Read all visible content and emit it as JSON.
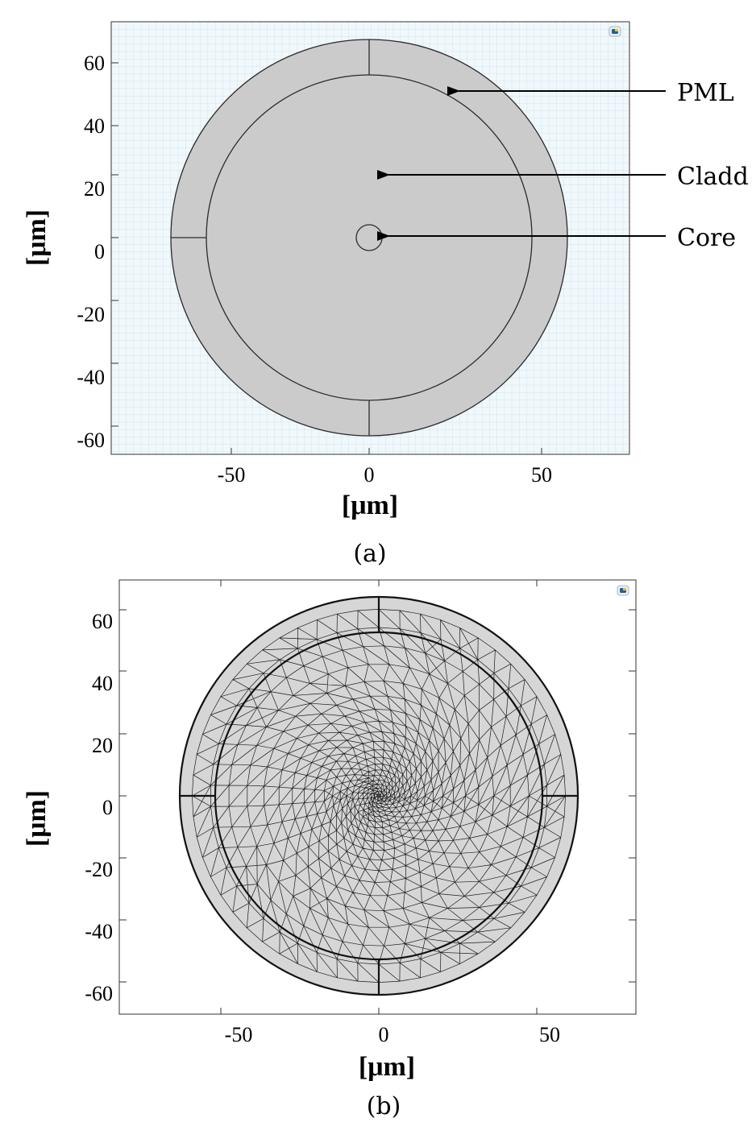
{
  "panel_a": {
    "caption": "(a)",
    "x_axis_label": "[μm]",
    "y_axis_label": "[μm]",
    "x_ticks": [
      "-50",
      "0",
      "50"
    ],
    "y_ticks": [
      "60",
      "40",
      "20",
      "0",
      "-20",
      "-40",
      "-60"
    ],
    "callouts": [
      {
        "label": "PML"
      },
      {
        "label": "Cladd"
      },
      {
        "label": "Core"
      }
    ],
    "colors": {
      "background": "#f1f8fc",
      "grid": "#cde3ee",
      "geometry": "#cbcbcb",
      "edge": "#2a2a2a"
    }
  },
  "panel_b": {
    "caption": "(b)",
    "x_axis_label": "[μm]",
    "y_axis_label": "[μm]",
    "x_ticks": [
      "-50",
      "0",
      "50"
    ],
    "y_ticks": [
      "60",
      "40",
      "20",
      "0",
      "-20",
      "-40",
      "-60"
    ],
    "colors": {
      "background": "#ffffff",
      "mesh_fill": "#d6d6d6",
      "mesh_line": "#1a1a1a"
    }
  }
}
